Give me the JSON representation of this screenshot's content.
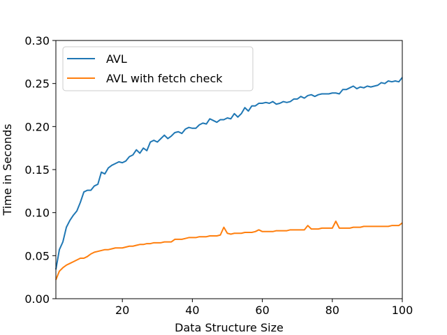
{
  "chart_data": {
    "type": "line",
    "title": "",
    "xlabel": "Data Structure Size",
    "ylabel": "Time in Seconds",
    "xlim": [
      1,
      100
    ],
    "ylim": [
      0,
      0.3
    ],
    "xticks": [
      20,
      40,
      60,
      80,
      100
    ],
    "yticks": [
      0.0,
      0.05,
      0.1,
      0.15,
      0.2,
      0.25,
      0.3
    ],
    "xtick_labels": [
      "20",
      "40",
      "60",
      "80",
      "100"
    ],
    "ytick_labels": [
      "0.00",
      "0.05",
      "0.10",
      "0.15",
      "0.20",
      "0.25",
      "0.30"
    ],
    "grid": false,
    "legend_position": "top-left",
    "x": [
      1,
      2,
      3,
      4,
      5,
      6,
      7,
      8,
      9,
      10,
      11,
      12,
      13,
      14,
      15,
      16,
      17,
      18,
      19,
      20,
      21,
      22,
      23,
      24,
      25,
      26,
      27,
      28,
      29,
      30,
      31,
      32,
      33,
      34,
      35,
      36,
      37,
      38,
      39,
      40,
      41,
      42,
      43,
      44,
      45,
      46,
      47,
      48,
      49,
      50,
      51,
      52,
      53,
      54,
      55,
      56,
      57,
      58,
      59,
      60,
      61,
      62,
      63,
      64,
      65,
      66,
      67,
      68,
      69,
      70,
      71,
      72,
      73,
      74,
      75,
      76,
      77,
      78,
      79,
      80,
      81,
      82,
      83,
      84,
      85,
      86,
      87,
      88,
      89,
      90,
      91,
      92,
      93,
      94,
      95,
      96,
      97,
      98,
      99,
      100
    ],
    "series": [
      {
        "name": "AVL",
        "color": "#1f77b4",
        "values": [
          0.034,
          0.057,
          0.066,
          0.083,
          0.091,
          0.097,
          0.102,
          0.112,
          0.124,
          0.126,
          0.126,
          0.131,
          0.133,
          0.147,
          0.145,
          0.152,
          0.155,
          0.157,
          0.159,
          0.158,
          0.16,
          0.165,
          0.167,
          0.173,
          0.169,
          0.175,
          0.172,
          0.182,
          0.184,
          0.182,
          0.186,
          0.19,
          0.186,
          0.189,
          0.193,
          0.194,
          0.192,
          0.197,
          0.199,
          0.198,
          0.198,
          0.202,
          0.204,
          0.203,
          0.209,
          0.207,
          0.205,
          0.208,
          0.208,
          0.21,
          0.209,
          0.215,
          0.211,
          0.215,
          0.222,
          0.218,
          0.224,
          0.224,
          0.227,
          0.227,
          0.228,
          0.227,
          0.229,
          0.226,
          0.227,
          0.229,
          0.228,
          0.229,
          0.232,
          0.232,
          0.235,
          0.233,
          0.236,
          0.237,
          0.235,
          0.237,
          0.238,
          0.238,
          0.238,
          0.239,
          0.239,
          0.238,
          0.243,
          0.243,
          0.245,
          0.247,
          0.244,
          0.246,
          0.245,
          0.247,
          0.246,
          0.247,
          0.248,
          0.251,
          0.25,
          0.253,
          0.252,
          0.253,
          0.252,
          0.257
        ]
      },
      {
        "name": "AVL with fetch check",
        "color": "#ff7f0e",
        "values": [
          0.022,
          0.032,
          0.036,
          0.039,
          0.041,
          0.043,
          0.045,
          0.047,
          0.047,
          0.049,
          0.052,
          0.054,
          0.055,
          0.056,
          0.057,
          0.057,
          0.058,
          0.059,
          0.059,
          0.059,
          0.06,
          0.061,
          0.061,
          0.062,
          0.063,
          0.063,
          0.064,
          0.064,
          0.065,
          0.065,
          0.065,
          0.066,
          0.066,
          0.066,
          0.069,
          0.069,
          0.069,
          0.07,
          0.071,
          0.071,
          0.071,
          0.072,
          0.072,
          0.072,
          0.073,
          0.073,
          0.073,
          0.074,
          0.083,
          0.076,
          0.075,
          0.076,
          0.076,
          0.076,
          0.077,
          0.077,
          0.077,
          0.078,
          0.08,
          0.078,
          0.078,
          0.078,
          0.078,
          0.079,
          0.079,
          0.079,
          0.079,
          0.08,
          0.08,
          0.08,
          0.08,
          0.08,
          0.085,
          0.081,
          0.081,
          0.081,
          0.082,
          0.082,
          0.082,
          0.082,
          0.09,
          0.082,
          0.082,
          0.082,
          0.082,
          0.083,
          0.083,
          0.083,
          0.084,
          0.084,
          0.084,
          0.084,
          0.084,
          0.084,
          0.084,
          0.084,
          0.085,
          0.085,
          0.085,
          0.088
        ]
      }
    ]
  }
}
